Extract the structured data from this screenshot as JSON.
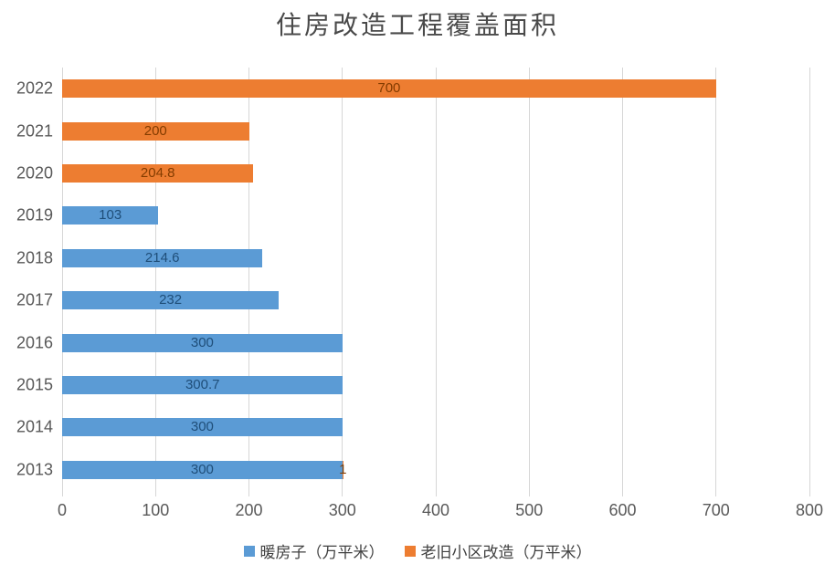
{
  "title": "住房改造工程覆盖面积",
  "colors": {
    "series_blue": "#5B9BD5",
    "series_orange": "#ED7D31",
    "label_on_blue": "#1F4E79",
    "label_on_orange": "#833C00",
    "axis_text": "#595959",
    "gridline": "#D6D6D6",
    "background": "#FFFFFF"
  },
  "chart_data": {
    "type": "bar",
    "orientation": "horizontal",
    "stacked": true,
    "title": "住房改造工程覆盖面积",
    "categories": [
      "2022",
      "2021",
      "2020",
      "2019",
      "2018",
      "2017",
      "2016",
      "2015",
      "2014",
      "2013"
    ],
    "series": [
      {
        "name": "暖房子（万平米）",
        "color": "#5B9BD5",
        "label_color": "#1F4E79",
        "values": [
          0,
          0,
          0,
          103,
          214.6,
          232,
          300,
          300.7,
          300,
          300
        ]
      },
      {
        "name": "老旧小区改造（万平米）",
        "color": "#ED7D31",
        "label_color": "#833C00",
        "values": [
          700,
          200,
          204.8,
          0,
          0,
          0,
          0,
          0,
          0,
          1
        ]
      }
    ],
    "x_ticks": [
      0,
      100,
      200,
      300,
      400,
      500,
      600,
      700,
      800
    ],
    "xlim": [
      0,
      800
    ],
    "xlabel": "",
    "ylabel": "",
    "grid": true,
    "legend_position": "bottom",
    "data_labels": "centered-in-segment"
  }
}
